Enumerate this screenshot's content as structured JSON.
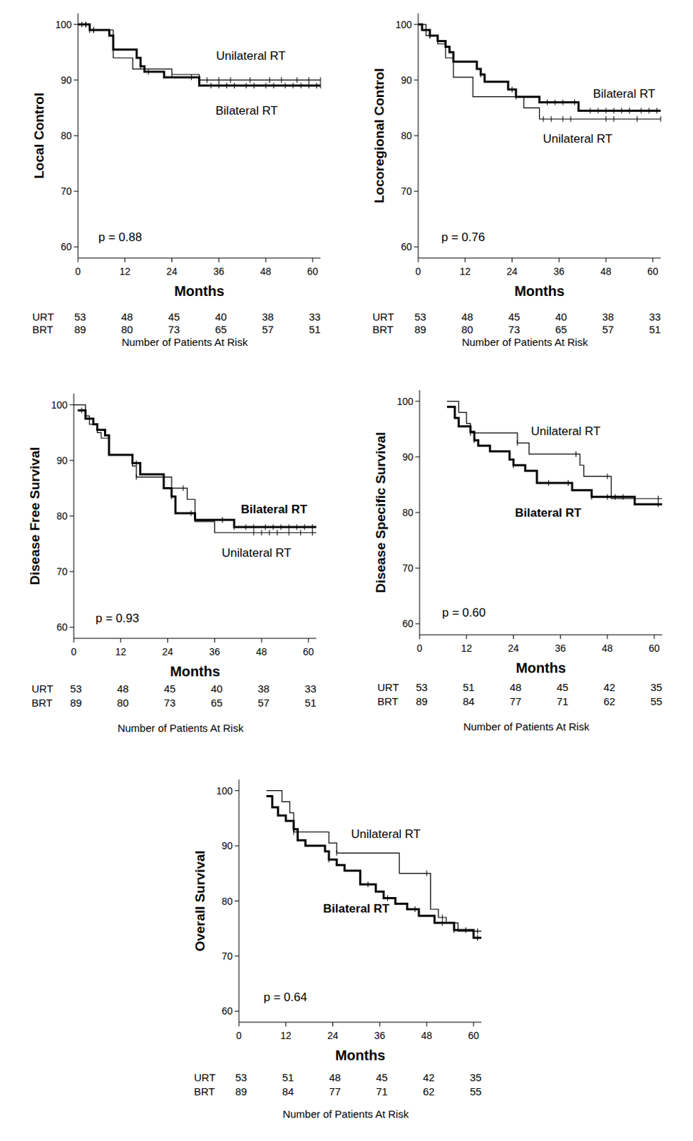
{
  "chart_data": [
    {
      "type": "step",
      "y_label": "Local Control",
      "x_label": "Months",
      "xlim": [
        0,
        62
      ],
      "ylim": [
        58,
        102
      ],
      "xticks": [
        0,
        12,
        24,
        36,
        48,
        60
      ],
      "yticks": [
        60,
        70,
        80,
        90,
        100
      ],
      "annotations": [
        "p = 0.88"
      ],
      "series": [
        {
          "name": "Unilateral RT",
          "color": "#000000",
          "line_style": "thin",
          "x": [
            0,
            3,
            9,
            14,
            24,
            31,
            62
          ],
          "values": [
            100,
            99,
            94,
            92,
            91,
            90,
            90
          ],
          "censored": [
            2,
            3,
            4,
            24,
            33,
            36,
            39,
            44,
            49,
            52,
            56,
            59,
            62
          ]
        },
        {
          "name": "Bilateral RT",
          "color": "#000000",
          "line_style": "thick",
          "x": [
            0,
            3,
            8,
            9,
            15,
            16,
            17,
            22,
            31,
            62
          ],
          "values": [
            100,
            99,
            98,
            95.5,
            94,
            92.5,
            91.5,
            90.5,
            89,
            89
          ],
          "censored": [
            1,
            2,
            4,
            16,
            18,
            29,
            34,
            36,
            38,
            40,
            43,
            45,
            48,
            50,
            53,
            55,
            57,
            59,
            61,
            62
          ]
        }
      ],
      "risk_table": {
        "title": "Number of Patients At Risk",
        "times": [
          0,
          12,
          24,
          36,
          48,
          60
        ],
        "rows": [
          {
            "label": "URT",
            "values": [
              53,
              48,
              45,
              40,
              38,
              33
            ]
          },
          {
            "label": "BRT",
            "values": [
              89,
              80,
              73,
              65,
              57,
              51
            ]
          }
        ]
      }
    },
    {
      "type": "step",
      "y_label": "Locoregional Control",
      "x_label": "Months",
      "xlim": [
        0,
        62
      ],
      "ylim": [
        58,
        102
      ],
      "xticks": [
        0,
        12,
        24,
        36,
        48,
        60
      ],
      "yticks": [
        60,
        70,
        80,
        90,
        100
      ],
      "annotations": [
        "p = 0.76"
      ],
      "series": [
        {
          "name": "Unilateral RT",
          "color": "#000000",
          "line_style": "thin",
          "x": [
            0,
            2,
            5,
            7,
            9,
            14,
            27,
            31,
            62
          ],
          "values": [
            100,
            98,
            96.5,
            94,
            90.5,
            87,
            85,
            83,
            83
          ],
          "censored": [
            3,
            25,
            32,
            34,
            37,
            39,
            48,
            50,
            56,
            62
          ]
        },
        {
          "name": "Bilateral RT",
          "color": "#000000",
          "line_style": "thick",
          "x": [
            0,
            1,
            3,
            5,
            7,
            8,
            9,
            15,
            16,
            17,
            23,
            25,
            31,
            41,
            62
          ],
          "values": [
            100,
            99,
            98,
            97,
            96,
            95,
            93.3,
            92,
            91,
            89.7,
            88.3,
            87,
            86,
            84.5,
            84.5
          ],
          "censored": [
            3,
            16,
            24,
            33,
            35,
            37,
            40,
            44,
            46,
            48,
            50,
            52,
            54,
            57,
            59,
            61
          ]
        }
      ],
      "risk_table": {
        "title": "Number of Patients At Risk",
        "times": [
          0,
          12,
          24,
          36,
          48,
          60
        ],
        "rows": [
          {
            "label": "URT",
            "values": [
              53,
              48,
              45,
              40,
              38,
              33
            ]
          },
          {
            "label": "BRT",
            "values": [
              89,
              80,
              73,
              65,
              57,
              51
            ]
          }
        ]
      }
    },
    {
      "type": "step",
      "y_label": "Disease Free Survival",
      "x_label": "Months",
      "xlim": [
        0,
        62
      ],
      "ylim": [
        58,
        102
      ],
      "xticks": [
        0,
        12,
        24,
        36,
        48,
        60
      ],
      "yticks": [
        60,
        70,
        80,
        90,
        100
      ],
      "annotations": [
        "p = 0.93"
      ],
      "series": [
        {
          "name": "Unilateral RT",
          "color": "#000000",
          "line_style": "thin",
          "x": [
            0,
            3,
            4,
            6,
            7,
            9,
            15,
            16,
            25,
            29,
            31,
            36,
            62
          ],
          "values": [
            100,
            98,
            96.5,
            95,
            94,
            91,
            89,
            87,
            85,
            83,
            79,
            77,
            77
          ],
          "censored": [
            3,
            16,
            28,
            46,
            48,
            50,
            52,
            55,
            58,
            61
          ]
        },
        {
          "name": "Bilateral RT",
          "color": "#000000",
          "line_style": "thick",
          "x": [
            1,
            3,
            5,
            6,
            8,
            9,
            15,
            17,
            23,
            25,
            26,
            31,
            41,
            62
          ],
          "values": [
            99,
            97.5,
            96.5,
            95.5,
            94.5,
            91,
            89.5,
            87.5,
            85,
            83.5,
            80.5,
            79.3,
            78,
            78
          ],
          "censored": [
            2,
            16,
            25,
            30,
            38,
            41,
            44,
            46,
            49,
            51,
            53,
            55,
            57,
            59,
            61
          ]
        }
      ],
      "risk_table": {
        "title": "Number of Patients At Risk",
        "times": [
          0,
          12,
          24,
          36,
          48,
          60
        ],
        "rows": [
          {
            "label": "URT",
            "values": [
              53,
              48,
              45,
              40,
              38,
              33
            ]
          },
          {
            "label": "BRT",
            "values": [
              89,
              80,
              73,
              65,
              57,
              51
            ]
          }
        ]
      }
    },
    {
      "type": "step",
      "y_label": "Disease Specific Survival",
      "x_label": "Months",
      "xlim": [
        0,
        62
      ],
      "ylim": [
        58,
        102
      ],
      "xticks": [
        0,
        12,
        24,
        36,
        48,
        60
      ],
      "yticks": [
        60,
        70,
        80,
        90,
        100
      ],
      "annotations": [
        "p = 0.60"
      ],
      "series": [
        {
          "name": "Unilateral RT",
          "color": "#000000",
          "line_style": "thin",
          "x": [
            7,
            10,
            12,
            13,
            25,
            28,
            41,
            42,
            49,
            62
          ],
          "values": [
            100,
            98,
            96,
            94.3,
            92.5,
            90.5,
            88.5,
            86.5,
            82.5,
            82.5
          ],
          "censored": [
            13,
            25,
            40,
            48,
            61
          ]
        },
        {
          "name": "Bilateral RT",
          "color": "#000000",
          "line_style": "thick",
          "x": [
            7,
            9,
            10,
            13,
            14,
            15,
            18,
            23,
            24,
            27,
            30,
            39,
            44,
            55,
            62
          ],
          "values": [
            99,
            97,
            95.5,
            94.5,
            93,
            92,
            91,
            89.5,
            88.5,
            87.5,
            85.3,
            84,
            82.8,
            81.5,
            81.5
          ],
          "censored": [
            14,
            24,
            33,
            38,
            44,
            48,
            50,
            52,
            61
          ]
        }
      ],
      "risk_table": {
        "title": "Number of Patients At Risk",
        "times": [
          0,
          12,
          24,
          36,
          48,
          60
        ],
        "rows": [
          {
            "label": "URT",
            "values": [
              53,
              51,
              48,
              45,
              42,
              35
            ]
          },
          {
            "label": "BRT",
            "values": [
              89,
              84,
              77,
              71,
              62,
              55
            ]
          }
        ]
      }
    },
    {
      "type": "step",
      "y_label": "Overall Survival",
      "x_label": "Months",
      "xlim": [
        0,
        62
      ],
      "ylim": [
        58,
        102
      ],
      "xticks": [
        0,
        12,
        24,
        36,
        48,
        60
      ],
      "yticks": [
        60,
        70,
        80,
        90,
        100
      ],
      "annotations": [
        "p = 0.64"
      ],
      "series": [
        {
          "name": "Unilateral RT",
          "color": "#000000",
          "line_style": "thin",
          "x": [
            7,
            11,
            13,
            14,
            23,
            25,
            41,
            49,
            51,
            53,
            56,
            62
          ],
          "values": [
            100,
            98,
            96,
            92.5,
            90.5,
            88.7,
            85,
            78.5,
            77,
            76,
            74.5,
            74.5
          ],
          "censored": [
            14,
            25,
            48,
            52,
            61
          ]
        },
        {
          "name": "Bilateral RT",
          "color": "#000000",
          "line_style": "thick",
          "x": [
            7,
            8.5,
            10,
            12,
            14,
            15,
            17,
            22,
            23,
            25,
            27,
            31,
            35,
            37,
            40,
            43,
            46,
            50,
            55,
            60,
            62
          ],
          "values": [
            99,
            97,
            95.5,
            94.5,
            93,
            91,
            90,
            89,
            87.5,
            86.5,
            85.5,
            83,
            81.7,
            80.5,
            79.5,
            78.5,
            77.3,
            76,
            74.7,
            73.3,
            73.3
          ],
          "censored": [
            14,
            23,
            33,
            38,
            45,
            52,
            55,
            58,
            61
          ]
        }
      ],
      "risk_table": {
        "title": "Number of Patients At Risk",
        "times": [
          0,
          12,
          24,
          36,
          48,
          60
        ],
        "rows": [
          {
            "label": "URT",
            "values": [
              53,
              51,
              48,
              45,
              42,
              35
            ]
          },
          {
            "label": "BRT",
            "values": [
              89,
              84,
              77,
              71,
              62,
              55
            ]
          }
        ]
      }
    }
  ]
}
